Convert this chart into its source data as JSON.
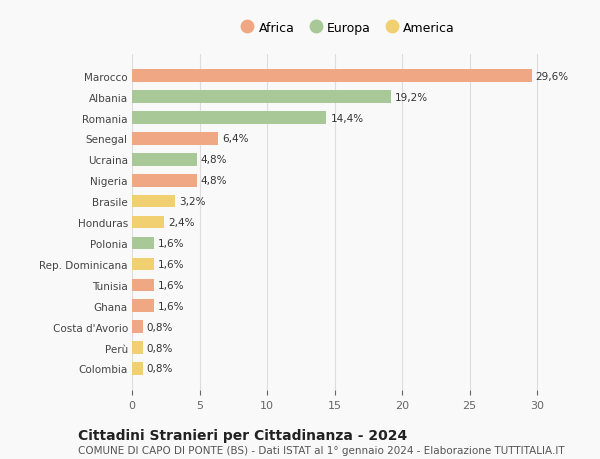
{
  "countries": [
    "Marocco",
    "Albania",
    "Romania",
    "Senegal",
    "Ucraina",
    "Nigeria",
    "Brasile",
    "Honduras",
    "Polonia",
    "Rep. Dominicana",
    "Tunisia",
    "Ghana",
    "Costa d'Avorio",
    "Perù",
    "Colombia"
  ],
  "values": [
    29.6,
    19.2,
    14.4,
    6.4,
    4.8,
    4.8,
    3.2,
    2.4,
    1.6,
    1.6,
    1.6,
    1.6,
    0.8,
    0.8,
    0.8
  ],
  "labels": [
    "29,6%",
    "19,2%",
    "14,4%",
    "6,4%",
    "4,8%",
    "4,8%",
    "3,2%",
    "2,4%",
    "1,6%",
    "1,6%",
    "1,6%",
    "1,6%",
    "0,8%",
    "0,8%",
    "0,8%"
  ],
  "continents": [
    "Africa",
    "Europa",
    "Europa",
    "Africa",
    "Europa",
    "Africa",
    "America",
    "America",
    "Europa",
    "America",
    "Africa",
    "Africa",
    "Africa",
    "America",
    "America"
  ],
  "colors": {
    "Africa": "#F0A884",
    "Europa": "#A8C897",
    "America": "#F0D070"
  },
  "legend_labels": [
    "Africa",
    "Europa",
    "America"
  ],
  "xlim": [
    0,
    32
  ],
  "xticks": [
    0,
    5,
    10,
    15,
    20,
    25,
    30
  ],
  "title": "Cittadini Stranieri per Cittadinanza - 2024",
  "subtitle": "COMUNE DI CAPO DI PONTE (BS) - Dati ISTAT al 1° gennaio 2024 - Elaborazione TUTTITALIA.IT",
  "title_fontsize": 10,
  "subtitle_fontsize": 7.5,
  "background_color": "#f9f9f9",
  "grid_color": "#dddddd"
}
